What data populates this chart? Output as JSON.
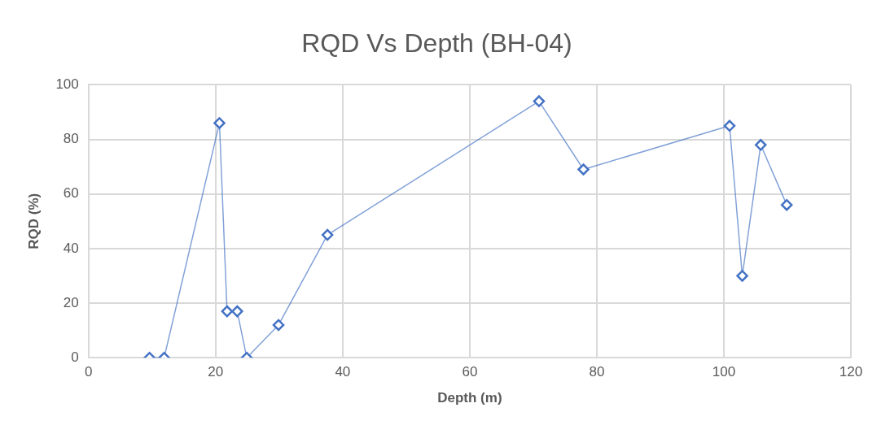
{
  "chart_data": {
    "type": "line",
    "title": "RQD Vs Depth (BH-04)",
    "xlabel": "Depth (m)",
    "ylabel": "RQD (%)",
    "series": [
      {
        "color": "#4472c4",
        "x": [
          9.6,
          11.9,
          20.6,
          21.8,
          23.4,
          24.9,
          29.9,
          37.6,
          70.9,
          77.9,
          100.9,
          102.9,
          105.8,
          109.9
        ],
        "values": [
          0,
          0,
          86,
          17,
          17,
          0,
          12,
          45,
          94,
          69,
          85,
          30,
          78,
          56
        ]
      }
    ],
    "xlim": [
      0,
      120
    ],
    "xticks": [
      0,
      20,
      40,
      60,
      80,
      100,
      120
    ],
    "ylim": [
      0,
      100
    ],
    "yticks": [
      0,
      20,
      40,
      60,
      80,
      100
    ],
    "grid": true,
    "legend": false,
    "marker": "diamond",
    "line_style": "solid"
  }
}
